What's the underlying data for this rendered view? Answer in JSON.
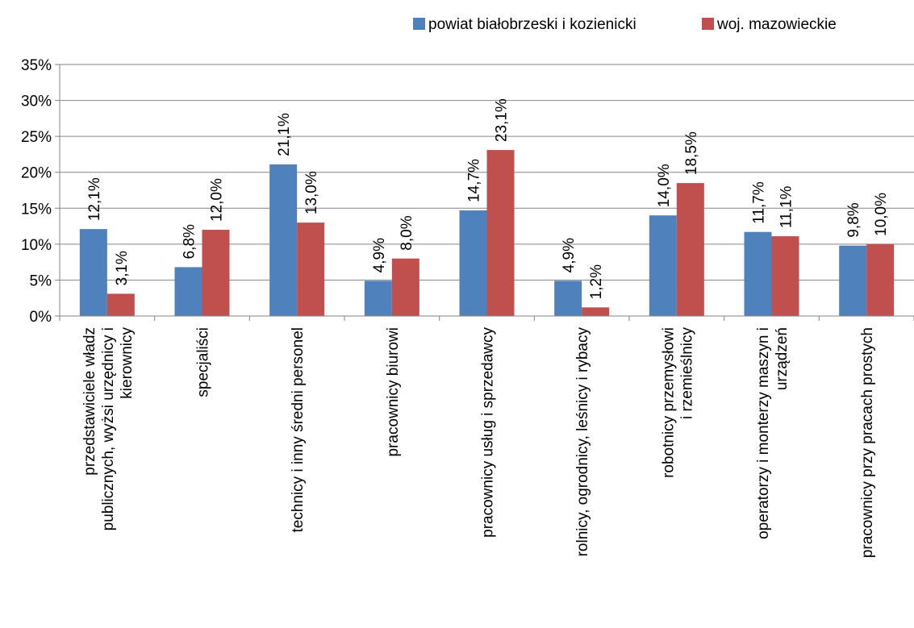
{
  "chart_data": {
    "type": "bar",
    "title": "",
    "xlabel": "",
    "ylabel": "",
    "ylim": [
      0,
      35
    ],
    "yticks": [
      "0%",
      "5%",
      "10%",
      "15%",
      "20%",
      "25%",
      "30%",
      "35%"
    ],
    "grid": true,
    "legend_position": "top-right",
    "categories": [
      "przedstawiciele władz publicznych, wyżsi urzędnicy i kierownicy",
      "specjaliści",
      "technicy i inny średni personel",
      "pracownicy biurowi",
      "pracownicy usług i sprzedawcy",
      "rolnicy, ogrodnicy, leśnicy i rybacy",
      "robotnicy przemysłowi i rzemieślnicy",
      "operatorzy i monterzy maszyn i urządzeń",
      "pracownicy przy pracach prostych"
    ],
    "category_label_lines": [
      [
        "przedstawiciele władz",
        "publicznych, wyżsi urzędnicy i",
        "kierownicy"
      ],
      [
        "specjaliści"
      ],
      [
        "technicy i inny średni personel"
      ],
      [
        "pracownicy biurowi"
      ],
      [
        "pracownicy usług i sprzedawcy"
      ],
      [
        "rolnicy, ogrodnicy, leśnicy i rybacy"
      ],
      [
        "robotnicy przemysłowi",
        "i rzemieślnicy"
      ],
      [
        "operatorzy i monterzy maszyn i",
        "urządzeń"
      ],
      [
        "pracownicy przy pracach prostych"
      ]
    ],
    "series": [
      {
        "name": "powiat białobrzeski i kozienicki",
        "color": "#4F81BD",
        "values": [
          12.1,
          6.8,
          21.1,
          4.9,
          14.7,
          4.9,
          14.0,
          11.7,
          9.8
        ],
        "labels": [
          "12,1%",
          "6,8%",
          "21,1%",
          "4,9%",
          "14,7%",
          "4,9%",
          "14,0%",
          "11,7%",
          "9,8%"
        ]
      },
      {
        "name": "woj. mazowieckie",
        "color": "#C0504D",
        "values": [
          3.1,
          12.0,
          13.0,
          8.0,
          23.1,
          1.2,
          18.5,
          11.1,
          10.0
        ],
        "labels": [
          "3,1%",
          "12,0%",
          "13,0%",
          "8,0%",
          "23,1%",
          "1,2%",
          "18,5%",
          "11,1%",
          "10,0%"
        ]
      }
    ]
  }
}
